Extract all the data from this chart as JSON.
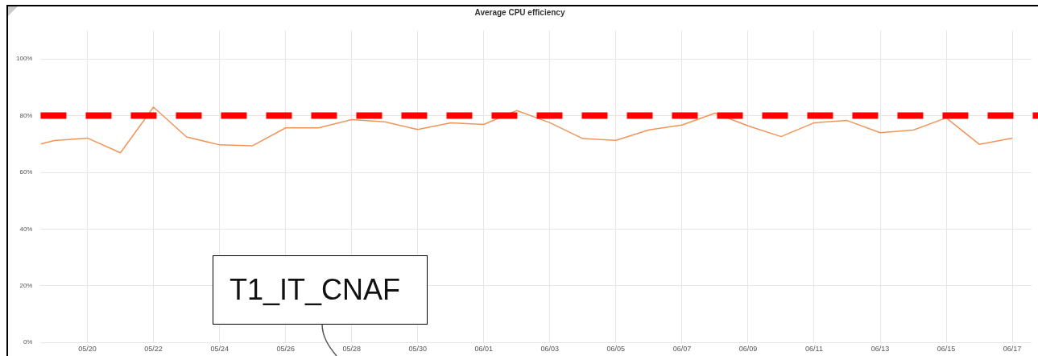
{
  "chart_data": {
    "type": "line",
    "title": "Average CPU efficiency",
    "x": [
      "--05-18T14:00",
      "--05-19",
      "--05-20",
      "--05-21",
      "--05-22",
      "--05-23",
      "--05-24",
      "--05-25",
      "--05-26",
      "--05-27",
      "--05-28",
      "--05-29",
      "--05-30",
      "--05-31",
      "--06-01",
      "--06-02",
      "--06-03",
      "--06-04",
      "--06-05",
      "--06-06",
      "--06-07",
      "--06-08",
      "--06-09",
      "--06-10",
      "--06-11",
      "--06-12",
      "--06-13",
      "--06-14",
      "--06-15",
      "--06-16",
      "--06-17"
    ],
    "series": [
      {
        "color": "#f0955a",
        "values": [
          70,
          71.2,
          72.1,
          66.9,
          83,
          72.5,
          69.7,
          69.4,
          75.7,
          75.7,
          78.6,
          77.8,
          75.1,
          77.5,
          76.9,
          81.8,
          77.5,
          71.9,
          71.3,
          75,
          76.7,
          80.9,
          76.4,
          72.6,
          77.5,
          78.3,
          74,
          74.9,
          79.2,
          69.9,
          72.1
        ]
      }
    ],
    "xlim": [
      "--05-18T14:00",
      "--06-17T14:00"
    ],
    "xticks": [
      {
        "value": "--05-20",
        "label": "05/20"
      },
      {
        "value": "--05-22",
        "label": "05/22"
      },
      {
        "value": "--05-24",
        "label": "05/24"
      },
      {
        "value": "--05-26",
        "label": "05/26"
      },
      {
        "value": "--05-28",
        "label": "05/28"
      },
      {
        "value": "--05-30",
        "label": "05/30"
      },
      {
        "value": "--06-01",
        "label": "06/01"
      },
      {
        "value": "--06-03",
        "label": "06/03"
      },
      {
        "value": "--06-05",
        "label": "06/05"
      },
      {
        "value": "--06-07",
        "label": "06/07"
      },
      {
        "value": "--06-09",
        "label": "06/09"
      },
      {
        "value": "--06-11",
        "label": "06/11"
      },
      {
        "value": "--06-13",
        "label": "06/13"
      },
      {
        "value": "--06-15",
        "label": "06/15"
      },
      {
        "value": "--06-17",
        "label": "06/17"
      }
    ],
    "ylim": [
      0,
      110
    ],
    "yticks": [
      {
        "value": 0,
        "label": "0%"
      },
      {
        "value": 20,
        "label": "20%"
      },
      {
        "value": 40,
        "label": "40%"
      },
      {
        "value": 60,
        "label": "60%"
      },
      {
        "value": 80,
        "label": "80%"
      },
      {
        "value": 100,
        "label": "100%"
      }
    ],
    "ref_lines": [
      {
        "axis": "y",
        "value": 80,
        "color": "#ff0000",
        "line_style": "dashed"
      }
    ],
    "annotations": [
      "T1_IT_CNAF"
    ],
    "grid": true,
    "marker": "none",
    "line_style": "solid",
    "legend": false
  }
}
